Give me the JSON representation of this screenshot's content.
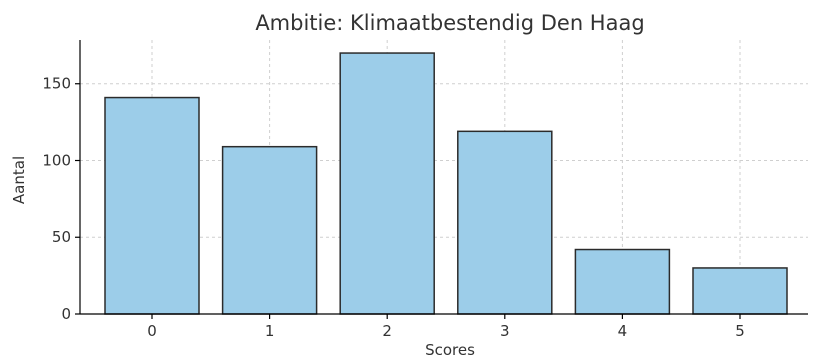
{
  "chart_data": {
    "type": "bar",
    "title": "Ambitie: Klimaatbestendig Den Haag",
    "xlabel": "Scores",
    "ylabel": "Aantal",
    "categories": [
      "0",
      "1",
      "2",
      "3",
      "4",
      "5"
    ],
    "values": [
      141,
      109,
      170,
      119,
      42,
      30
    ],
    "ylim": [
      0,
      178.5
    ],
    "yticks": [
      "0",
      "50",
      "100",
      "150"
    ],
    "grid": true,
    "bar_color": "#9ccde9",
    "edge_color": "#2b2b2b"
  }
}
